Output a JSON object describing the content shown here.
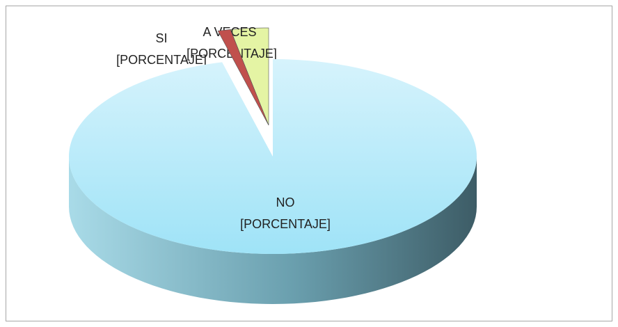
{
  "chart_data": {
    "type": "pie",
    "categories": [
      "A VECES",
      "SI",
      "NO"
    ],
    "values": [
      3,
      1,
      96
    ],
    "value_labels": [
      "[PORCENTAJE]",
      "[PORCENTAJE]",
      "[PORCENTAJE]"
    ],
    "colors": [
      "#e4f4a4",
      "#c0504d",
      "#b8eaf9"
    ]
  }
}
